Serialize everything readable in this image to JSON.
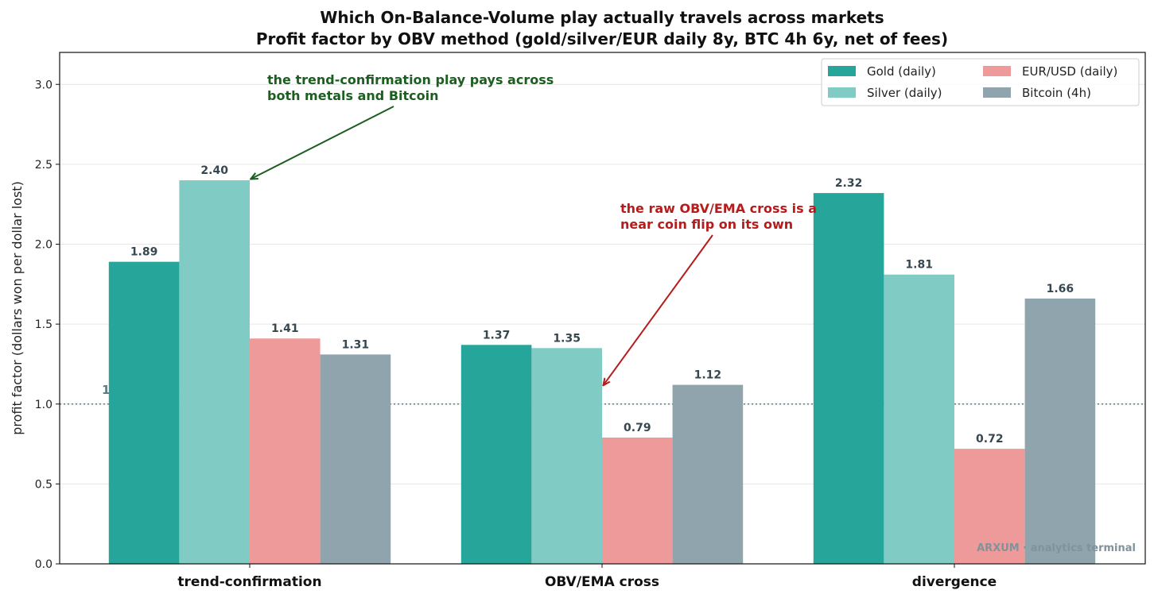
{
  "chart_data": {
    "type": "bar",
    "title_line1": "Which On-Balance-Volume play actually travels across markets",
    "title_line2": "Profit factor by OBV method (gold/silver/EUR daily 8y, BTC 4h 6y, net of fees)",
    "ylabel": "profit factor (dollars won per dollar lost)",
    "xlabel": "",
    "categories": [
      "trend-confirmation",
      "OBV/EMA cross",
      "divergence"
    ],
    "series": [
      {
        "name": "Gold (daily)",
        "color": "#26a69a",
        "values": [
          1.89,
          1.37,
          2.32
        ]
      },
      {
        "name": "Silver (daily)",
        "color": "#80cbc4",
        "values": [
          2.4,
          1.35,
          1.81
        ]
      },
      {
        "name": "EUR/USD (daily)",
        "color": "#ef9a9a",
        "values": [
          1.41,
          0.79,
          0.72
        ]
      },
      {
        "name": "Bitcoin (4h)",
        "color": "#90a4ae",
        "values": [
          1.31,
          1.12,
          1.66
        ]
      }
    ],
    "value_labels": [
      [
        "1.89",
        "1.37",
        "2.32"
      ],
      [
        "2.40",
        "1.35",
        "1.81"
      ],
      [
        "1.41",
        "0.79",
        "0.72"
      ],
      [
        "1.31",
        "1.12",
        "1.66"
      ]
    ],
    "ylim": [
      0,
      3.2
    ],
    "yticks": [
      0.0,
      0.5,
      1.0,
      1.5,
      2.0,
      2.5,
      3.0
    ],
    "ytick_labels": [
      "0.0",
      "0.5",
      "1.0",
      "1.5",
      "2.0",
      "2.5",
      "3.0"
    ],
    "grid": "horizontal",
    "legend_position": "top-right",
    "reference_line": {
      "value": 1.0,
      "label": "1.0 = breakeven",
      "color": "#5f7a80"
    },
    "annotations": [
      {
        "lines": [
          "the trend-confirmation play pays across",
          "both metals and Bitcoin"
        ],
        "color": "#1b5e20",
        "target_series": 1,
        "target_category": 0
      },
      {
        "lines": [
          "the raw OBV/EMA cross is a",
          "near coin flip on its own"
        ],
        "color": "#b71c1c",
        "target_series": 1,
        "target_category": 1
      }
    ],
    "watermark": "ARXUM · analytics terminal"
  }
}
